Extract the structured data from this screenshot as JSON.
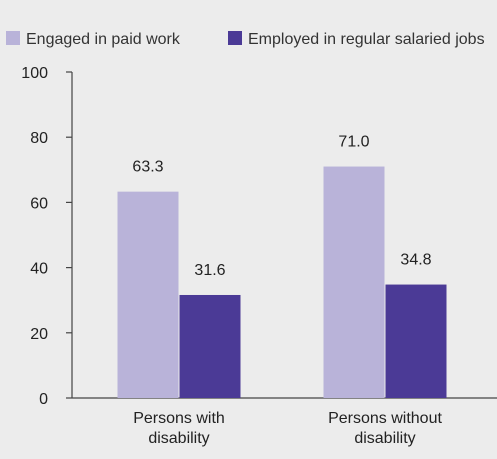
{
  "chart_data": {
    "type": "bar",
    "categories": [
      [
        "Persons with",
        "disability"
      ],
      [
        "Persons without",
        "disability"
      ]
    ],
    "series": [
      {
        "name": "Engaged in paid work",
        "values": [
          63.3,
          71.0
        ],
        "labels": [
          "63.3",
          "71.0"
        ],
        "color": "#b9b3d9"
      },
      {
        "name": "Employed in regular salaried jobs",
        "values": [
          31.6,
          34.8
        ],
        "labels": [
          "31.6",
          "34.8"
        ],
        "color": "#4b3a96"
      }
    ],
    "ylim": [
      0,
      100
    ],
    "yticks": [
      {
        "value": 0,
        "label": "0"
      },
      {
        "value": 20,
        "label": "20"
      },
      {
        "value": 40,
        "label": "40"
      },
      {
        "value": 60,
        "label": "60"
      },
      {
        "value": 80,
        "label": "80"
      },
      {
        "value": 100,
        "label": "100"
      }
    ],
    "legend_position": "top",
    "grid": false,
    "title": "",
    "xlabel": "",
    "ylabel": ""
  }
}
